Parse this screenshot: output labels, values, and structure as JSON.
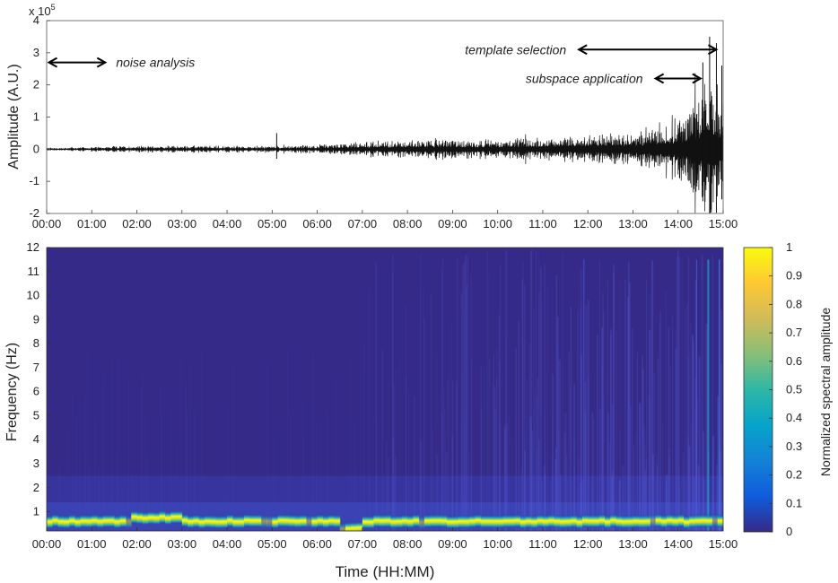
{
  "chart_data": [
    {
      "type": "line",
      "name": "waveform",
      "ylabel": "Amplitude (A.U.)",
      "scale_label": "x 10",
      "scale_exponent": "5",
      "x_ticks": [
        "00:00",
        "01:00",
        "02:00",
        "03:00",
        "04:00",
        "05:00",
        "06:00",
        "07:00",
        "08:00",
        "09:00",
        "10:00",
        "11:00",
        "12:00",
        "13:00",
        "14:00",
        "15:00"
      ],
      "y_ticks": [
        "-2",
        "-1",
        "0",
        "1",
        "2",
        "3",
        "4"
      ],
      "xlim": [
        0,
        15
      ],
      "ylim": [
        -2,
        4
      ],
      "envelope": {
        "x_hours": [
          0,
          1,
          2,
          3,
          4,
          5,
          6,
          7,
          8,
          9,
          10,
          11,
          12,
          13,
          13.5,
          14,
          14.5,
          14.8,
          15
        ],
        "amplitude_1e5": [
          0.05,
          0.08,
          0.12,
          0.12,
          0.12,
          0.12,
          0.15,
          0.25,
          0.35,
          0.35,
          0.35,
          0.4,
          0.5,
          0.6,
          0.8,
          1.2,
          2.0,
          2.6,
          1.8
        ]
      },
      "spikes": [
        {
          "x_hours": 5.1,
          "amplitude_1e5": 0.5
        },
        {
          "x_hours": 14.55,
          "amplitude_1e5": 2.7
        },
        {
          "x_hours": 14.7,
          "amplitude_1e5": 3.5
        },
        {
          "x_hours": 14.85,
          "amplitude_1e5": 3.3
        },
        {
          "x_hours": 14.97,
          "amplitude_1e5": 2.6
        }
      ],
      "annotations": [
        {
          "text": "noise analysis",
          "arrow_x_hours": [
            0.05,
            1.3
          ],
          "y_1e5": 2.7
        },
        {
          "text": "template selection",
          "arrow_x_hours": [
            11.8,
            14.85
          ],
          "y_1e5": 3.1
        },
        {
          "text": "subspace application",
          "arrow_x_hours": [
            13.5,
            14.5
          ],
          "y_1e5": 2.2
        }
      ]
    },
    {
      "type": "heatmap",
      "name": "spectrogram",
      "xlabel": "Time (HH:MM)",
      "ylabel": "Frequency (Hz)",
      "x_ticks": [
        "00:00",
        "01:00",
        "02:00",
        "03:00",
        "04:00",
        "05:00",
        "06:00",
        "07:00",
        "08:00",
        "09:00",
        "10:00",
        "11:00",
        "12:00",
        "13:00",
        "14:00",
        "15:00"
      ],
      "y_ticks": [
        "1",
        "2",
        "3",
        "4",
        "5",
        "6",
        "7",
        "8",
        "9",
        "10",
        "11",
        "12"
      ],
      "xlim": [
        0,
        15
      ],
      "ylim": [
        0.2,
        12
      ],
      "colormap": "parula",
      "dominant_band_hz": 0.6,
      "colorbar": {
        "label": "Normalized spectral amplitude",
        "ticks": [
          "0",
          "0.1",
          "0.2",
          "0.3",
          "0.4",
          "0.5",
          "0.6",
          "0.7",
          "0.8",
          "0.9",
          "1"
        ],
        "range": [
          0,
          1
        ],
        "colors": [
          "#352a87",
          "#0f5cdd",
          "#1481d6",
          "#06a4ca",
          "#2eb7a4",
          "#87bf77",
          "#d1bb59",
          "#fec832",
          "#f9fb0e"
        ]
      }
    }
  ]
}
